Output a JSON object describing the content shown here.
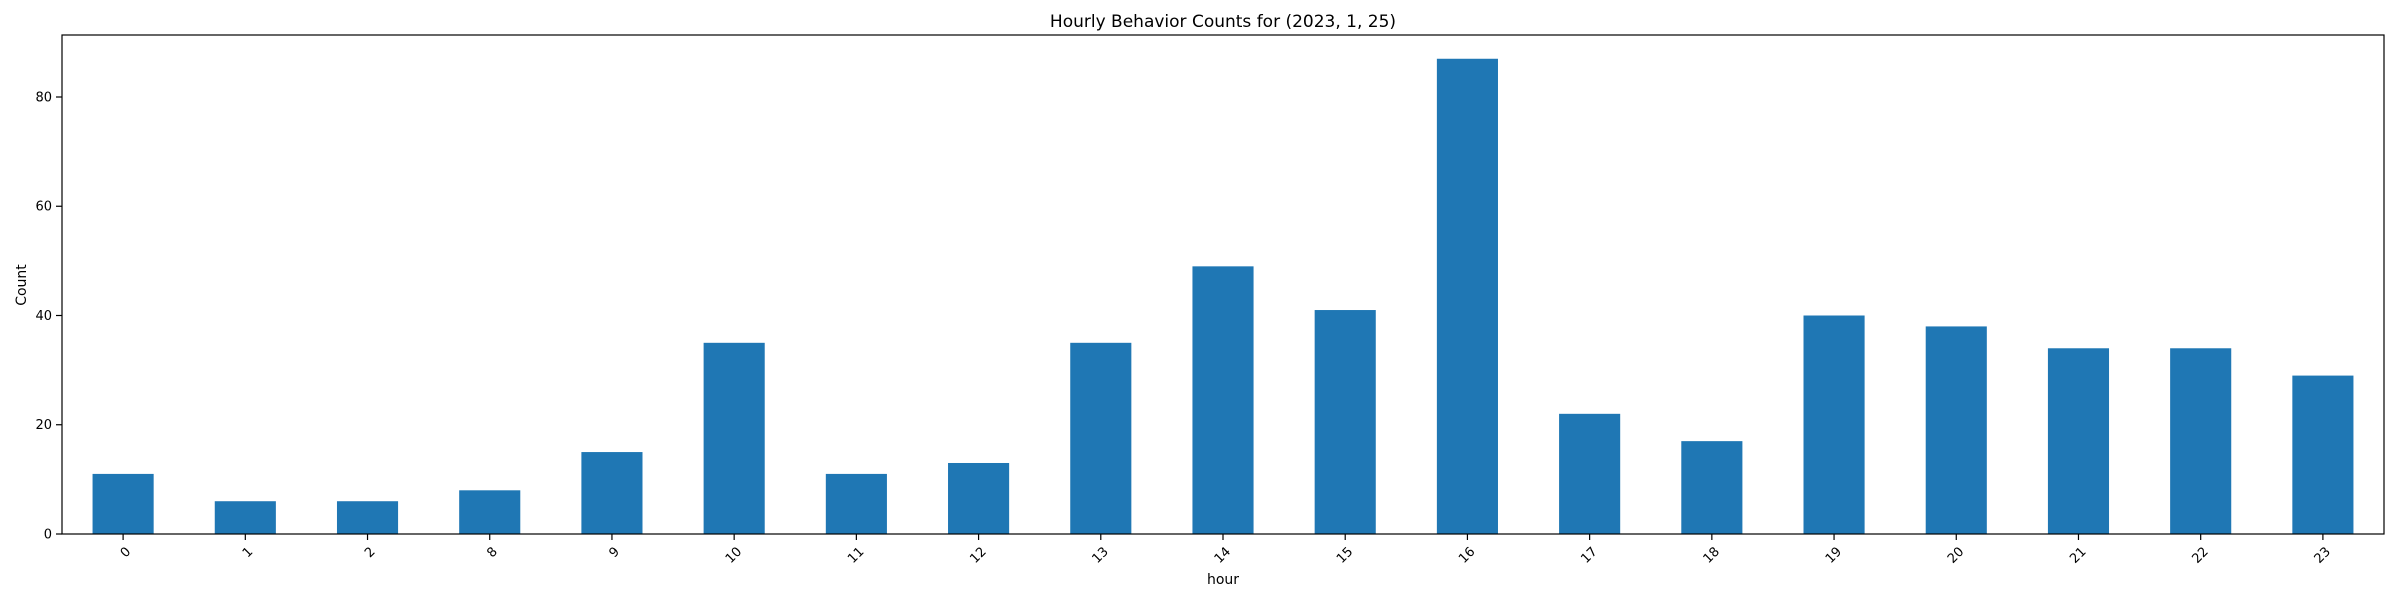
{
  "chart_data": {
    "type": "bar",
    "title": "Hourly Behavior Counts for (2023, 1, 25)",
    "xlabel": "hour",
    "ylabel": "Count",
    "categories": [
      "0",
      "1",
      "2",
      "8",
      "9",
      "10",
      "11",
      "12",
      "13",
      "14",
      "15",
      "16",
      "17",
      "18",
      "19",
      "20",
      "21",
      "22",
      "23"
    ],
    "values": [
      11,
      6,
      6,
      8,
      15,
      35,
      11,
      13,
      35,
      49,
      41,
      87,
      22,
      17,
      40,
      38,
      34,
      34,
      29
    ],
    "ylim": [
      0,
      91.35
    ],
    "yticks": [
      0,
      20,
      40,
      60,
      80
    ],
    "grid": false,
    "legend": "none",
    "bar_color": "#1f77b4"
  }
}
